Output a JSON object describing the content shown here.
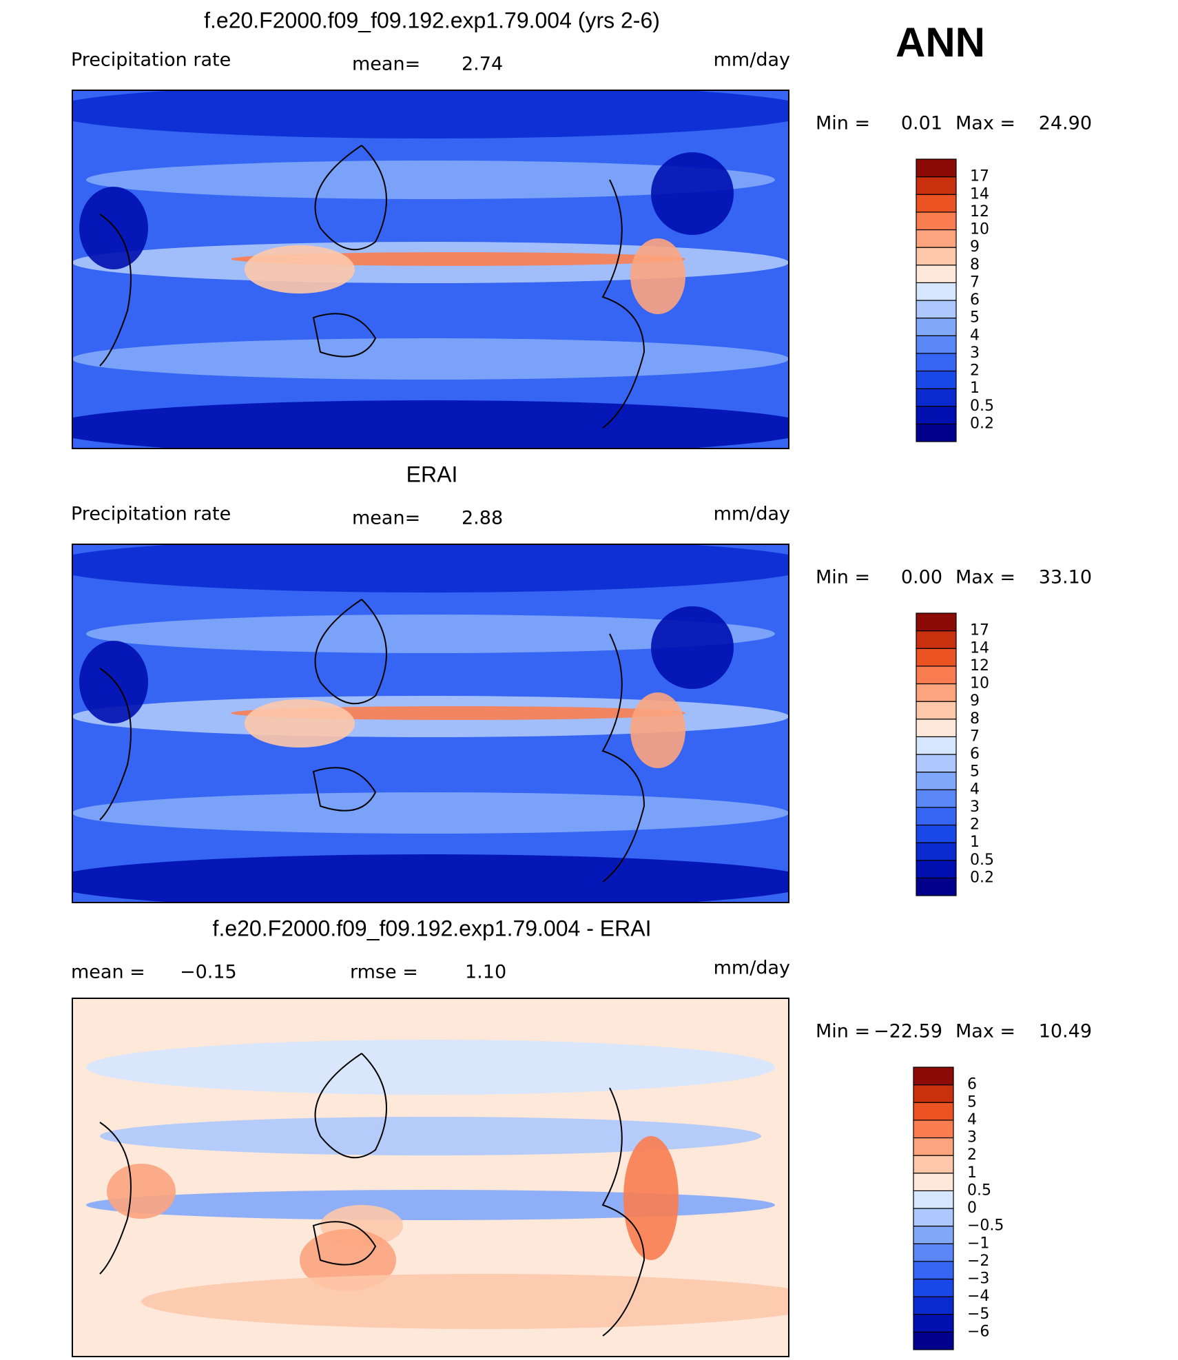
{
  "season": "ANN",
  "panels": [
    {
      "title": "f.e20.F2000.f09_f09.192.exp1.79.004 (yrs 2-6)",
      "variable": "Precipitation rate",
      "stats": [
        {
          "label": "mean=",
          "value": "2.74"
        }
      ],
      "units": "mm/day",
      "min_label": "Min =",
      "min": "0.01",
      "max_label": "Max =",
      "max": "24.90",
      "levels": [
        "0.2",
        "0.5",
        "1",
        "2",
        "3",
        "4",
        "5",
        "6",
        "7",
        "8",
        "9",
        "10",
        "12",
        "14",
        "17"
      ],
      "colors": [
        "#00008c",
        "#0010b0",
        "#0a2ad0",
        "#1a48e8",
        "#3565f2",
        "#5a86f6",
        "#82a8fa",
        "#adc8fc",
        "#d6e6fe",
        "#fde8da",
        "#fdc8aa",
        "#fca47e",
        "#f97d50",
        "#ec5322",
        "#c8300e",
        "#8c0b06"
      ]
    },
    {
      "title": "ERAI",
      "variable": "Precipitation rate",
      "stats": [
        {
          "label": "mean=",
          "value": "2.88"
        }
      ],
      "units": "mm/day",
      "min_label": "Min =",
      "min": "0.00",
      "max_label": "Max =",
      "max": "33.10",
      "levels": [
        "0.2",
        "0.5",
        "1",
        "2",
        "3",
        "4",
        "5",
        "6",
        "7",
        "8",
        "9",
        "10",
        "12",
        "14",
        "17"
      ],
      "colors": [
        "#00008c",
        "#0010b0",
        "#0a2ad0",
        "#1a48e8",
        "#3565f2",
        "#5a86f6",
        "#82a8fa",
        "#adc8fc",
        "#d6e6fe",
        "#fde8da",
        "#fdc8aa",
        "#fca47e",
        "#f97d50",
        "#ec5322",
        "#c8300e",
        "#8c0b06"
      ]
    },
    {
      "title": "f.e20.F2000.f09_f09.192.exp1.79.004 - ERAI",
      "stats": [
        {
          "label": "mean =",
          "value": "−0.15"
        },
        {
          "label": "rmse =",
          "value": "1.10"
        }
      ],
      "units": "mm/day",
      "min_label": "Min =",
      "min": "−22.59",
      "max_label": "Max =",
      "max": "10.49",
      "levels": [
        "−6",
        "−5",
        "−4",
        "−3",
        "−2",
        "−1",
        "−0.5",
        "0",
        "0.5",
        "1",
        "2",
        "3",
        "4",
        "5",
        "6"
      ],
      "colors": [
        "#00008c",
        "#0010b0",
        "#0a2ad0",
        "#1a48e8",
        "#3565f2",
        "#5a86f6",
        "#82a8fa",
        "#adc8fc",
        "#d6e6fe",
        "#fde8da",
        "#fdc8aa",
        "#fca47e",
        "#f97d50",
        "#ec5322",
        "#c8300e",
        "#8c0b06"
      ]
    }
  ]
}
